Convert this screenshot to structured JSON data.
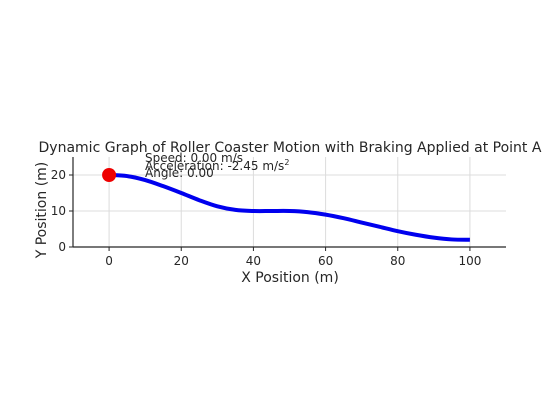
{
  "chart_data": {
    "type": "line",
    "title": "Dynamic Graph of Roller Coaster Motion with Braking Applied at Point A",
    "xlabel": "X Position (m)",
    "ylabel": "Y Position (m)",
    "xlim": [
      -10,
      110
    ],
    "ylim": [
      0,
      25
    ],
    "xticks": [
      0,
      20,
      40,
      60,
      80,
      100
    ],
    "yticks": [
      0,
      10,
      20
    ],
    "grid": true,
    "series": [
      {
        "color": "#0000ee",
        "x": [
          0,
          5,
          10,
          15,
          20,
          25,
          30,
          35,
          40,
          45,
          50,
          55,
          60,
          65,
          70,
          75,
          80,
          85,
          90,
          95,
          100
        ],
        "y": [
          20,
          19.7,
          18.6,
          16.9,
          15.0,
          13.0,
          11.3,
          10.3,
          10.0,
          10.0,
          10.0,
          9.7,
          9.0,
          8.0,
          6.8,
          5.6,
          4.4,
          3.4,
          2.6,
          2.1,
          2.0
        ]
      }
    ],
    "marker": {
      "x": 0,
      "y": 20,
      "color": "#ee0000"
    },
    "annotations": {
      "speed": "Speed: 0.00 m/s",
      "accel_prefix": "Acceleration: ",
      "accel_value": "-2.45",
      "accel_unit": " m/s",
      "accel_exp": "2",
      "angle": "Angle: 0.00"
    }
  }
}
